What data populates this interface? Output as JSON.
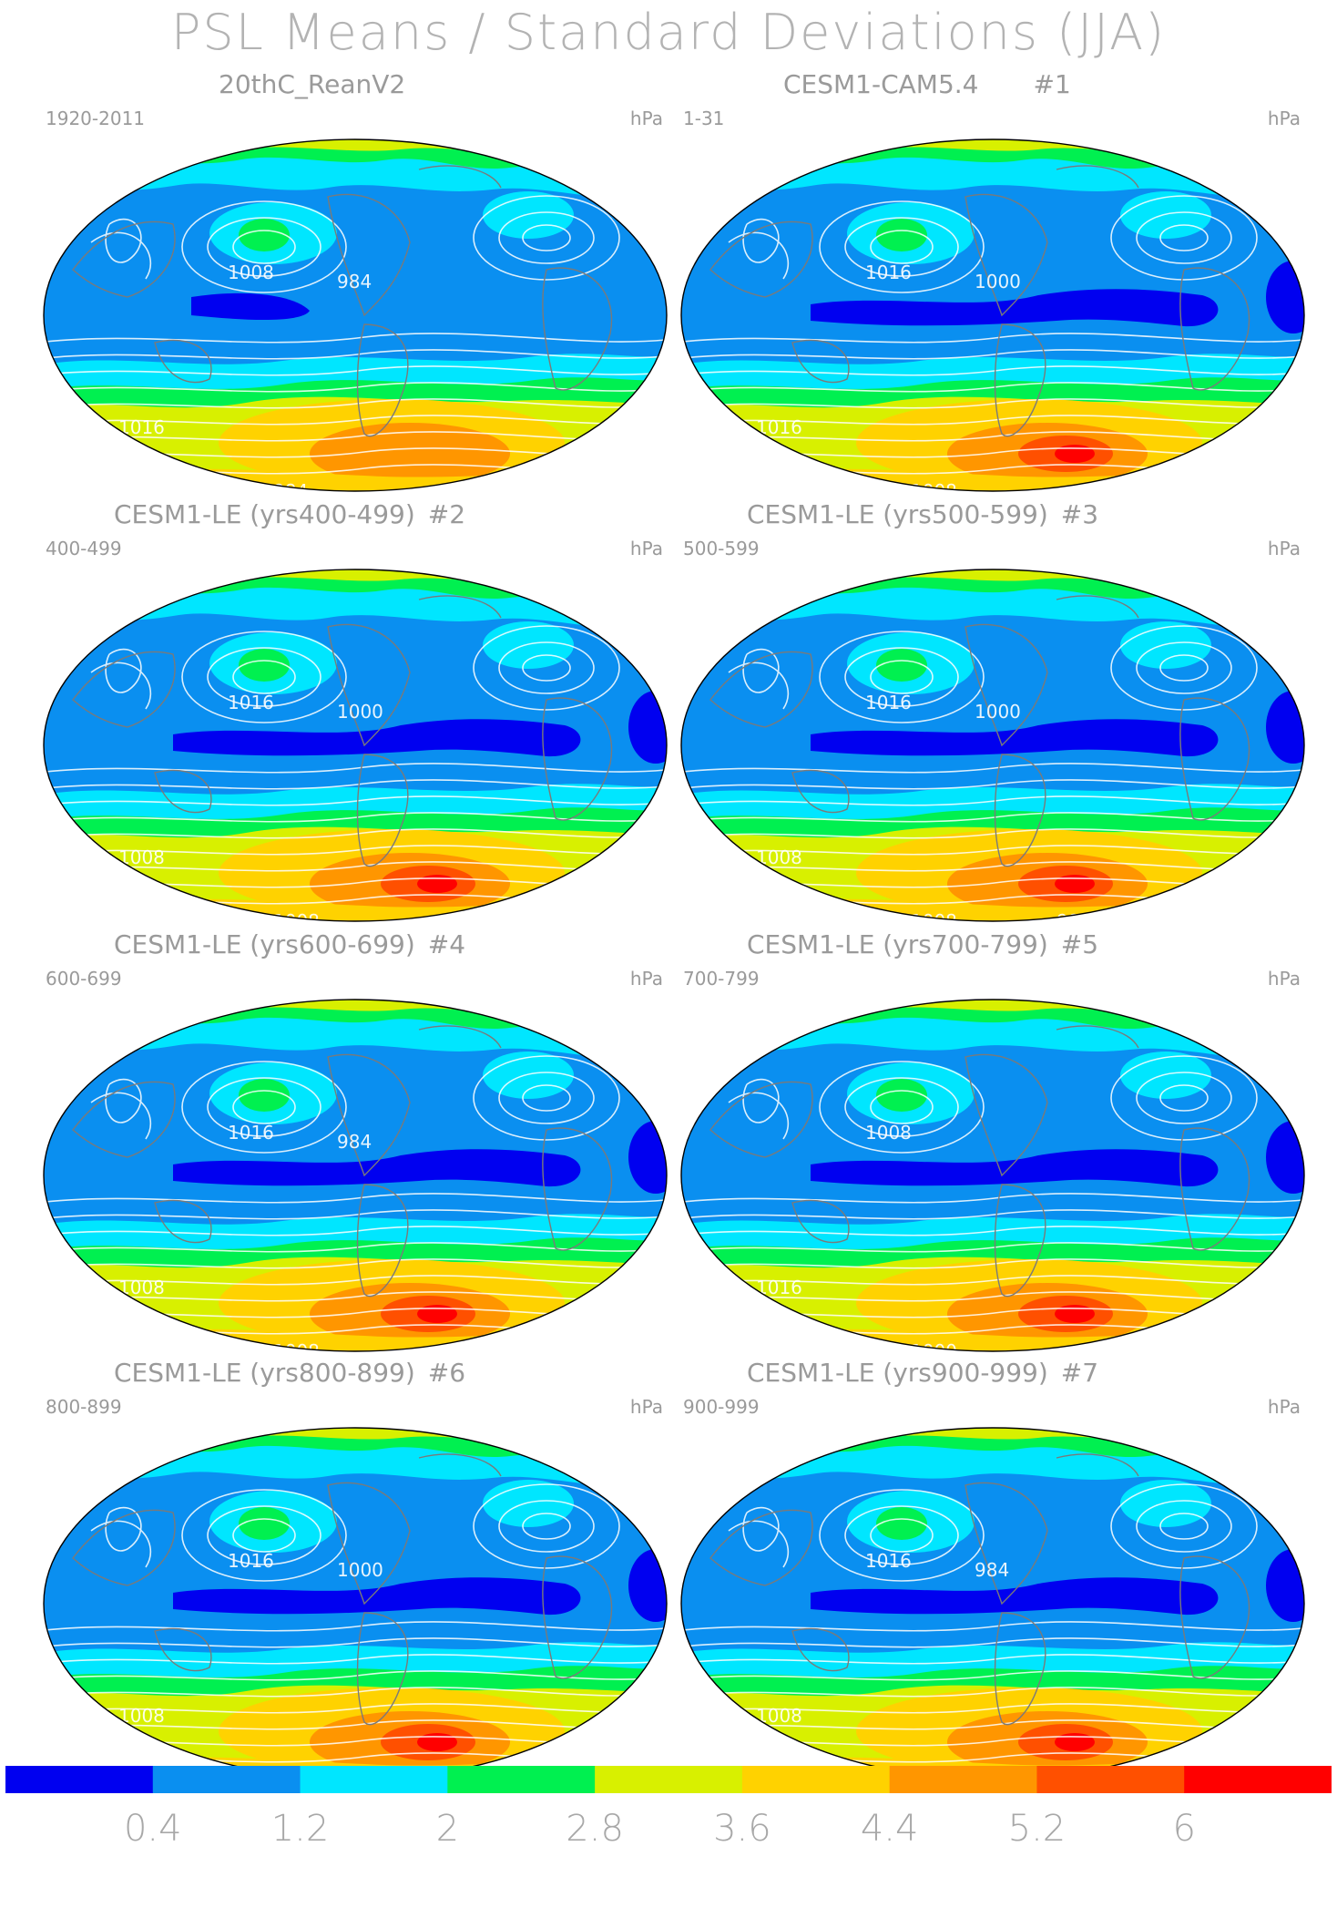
{
  "title": "PSL Means / Standard Deviations (JJA)",
  "colors": {
    "levels": [
      "#0000f0",
      "#0a8ff0",
      "#00e6ff",
      "#00f050",
      "#d8f000",
      "#ffd200",
      "#ff9600",
      "#ff5000",
      "#ff0000"
    ],
    "contour": "#ffffff",
    "coast": "#7a7a7a",
    "text": "#9a9a9a"
  },
  "colorbar": {
    "labels": [
      "0.4",
      "1.2",
      "2",
      "2.8",
      "3.6",
      "4.4",
      "5.2",
      "6"
    ]
  },
  "panels": [
    {
      "title": "20thC_ReanV2",
      "number": "",
      "years": "1920-2011",
      "units": "hPa",
      "contour_labels": [
        "1016",
        "1016",
        "1008",
        "984",
        "984"
      ]
    },
    {
      "title": "CESM1-CAM5.4",
      "number": "#1",
      "years": "1-31",
      "units": "hPa",
      "contour_labels": [
        "1016",
        "1016",
        "1016",
        "1008",
        "1000"
      ]
    },
    {
      "title": "CESM1-LE (yrs400-499)",
      "number": "#2",
      "years": "400-499",
      "units": "hPa",
      "contour_labels": [
        "1008",
        "1008",
        "1016",
        "1008",
        "1000"
      ]
    },
    {
      "title": "CESM1-LE (yrs500-599)",
      "number": "#3",
      "years": "500-599",
      "units": "hPa",
      "contour_labels": [
        "1008",
        "1016",
        "1016",
        "1008",
        "1000",
        "984"
      ]
    },
    {
      "title": "CESM1-LE (yrs600-699)",
      "number": "#4",
      "years": "600-699",
      "units": "hPa",
      "contour_labels": [
        "1008",
        "1016",
        "1016",
        "1008",
        "984"
      ]
    },
    {
      "title": "CESM1-LE (yrs700-799)",
      "number": "#5",
      "years": "700-799",
      "units": "hPa",
      "contour_labels": [
        "1016",
        "1016",
        "1008",
        "1000"
      ]
    },
    {
      "title": "CESM1-LE (yrs800-899)",
      "number": "#6",
      "years": "800-899",
      "units": "hPa",
      "contour_labels": [
        "1008",
        "1016",
        "1016",
        "1008",
        "1000"
      ]
    },
    {
      "title": "CESM1-LE (yrs900-999)",
      "number": "#7",
      "years": "900-999",
      "units": "hPa",
      "contour_labels": [
        "1008",
        "1016",
        "1016",
        "1008",
        "984"
      ]
    }
  ]
}
